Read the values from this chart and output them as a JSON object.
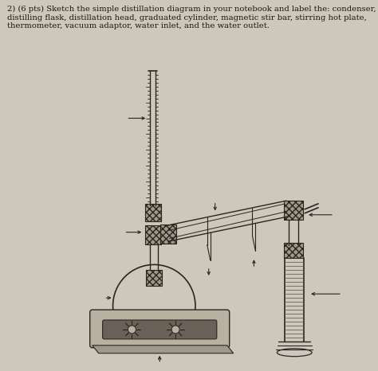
{
  "bg_color": "#cdc8bc",
  "line_color": "#2a2520",
  "title": "2) (6 pts) Sketch the simple distillation diagram in your notebook and label the: condenser,\ndistilling flask, distillation head, graduated cylinder, magnetic stir bar, stirring hot plate,\nthermometer, vacuum adaptor, water inlet, and the water outlet.",
  "title_fontsize": 7.2,
  "fig_w": 4.74,
  "fig_h": 4.66,
  "dpi": 100
}
